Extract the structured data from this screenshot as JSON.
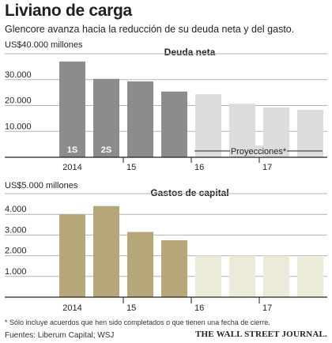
{
  "title": "Liviano de carga",
  "subtitle": "Glencore avanza hacia la reducción de su deuda neta y del gasto.",
  "footnote": "* Sólo incluye acuerdos que hen sido completados o que tienen una fecha de cierre.",
  "sources": "Fuentes: Liberum Capital; WSJ",
  "publisher": "THE WALL STREET JOURNAL.",
  "colors": {
    "debt_actual": "#8c8c8e",
    "debt_projection": "#dcdcdd",
    "capex_actual": "#b5a77a",
    "capex_projection": "#ecead8",
    "axis": "#231f20",
    "grid": "#b3b3b3"
  },
  "chart_data": [
    {
      "type": "bar",
      "title": "Deuda neta",
      "unit_label": "US$40.000 millones",
      "ylim": [
        0,
        40000
      ],
      "yticks": [
        10000,
        20000,
        30000
      ],
      "ytick_labels": [
        "10.000",
        "20.000",
        "30.000"
      ],
      "x_year_labels": [
        "2014",
        "15",
        "16",
        "17"
      ],
      "values": [
        37000,
        30300,
        29300,
        25400,
        24400,
        20700,
        19200,
        18300
      ],
      "projected": [
        false,
        false,
        false,
        false,
        true,
        true,
        true,
        true
      ],
      "bar_labels": [
        "1S",
        "2S",
        "",
        "",
        "",
        "",
        "",
        ""
      ],
      "projection_label": "Proyecciones*"
    },
    {
      "type": "bar",
      "title": "Gastos de capital",
      "unit_label": "US$5.000 millones",
      "ylim": [
        0,
        5000
      ],
      "yticks": [
        1000,
        2000,
        3000,
        4000
      ],
      "ytick_labels": [
        "1.000",
        "2.000",
        "3.000",
        "4.000"
      ],
      "x_year_labels": [
        "2014",
        "15",
        "16",
        "17"
      ],
      "values": [
        4000,
        4400,
        3150,
        2750,
        2000,
        2000,
        2000,
        1950
      ],
      "projected": [
        false,
        false,
        false,
        false,
        true,
        true,
        true,
        true
      ],
      "bar_labels": [
        "",
        "",
        "",
        "",
        "",
        "",
        "",
        ""
      ],
      "projection_label": ""
    }
  ]
}
